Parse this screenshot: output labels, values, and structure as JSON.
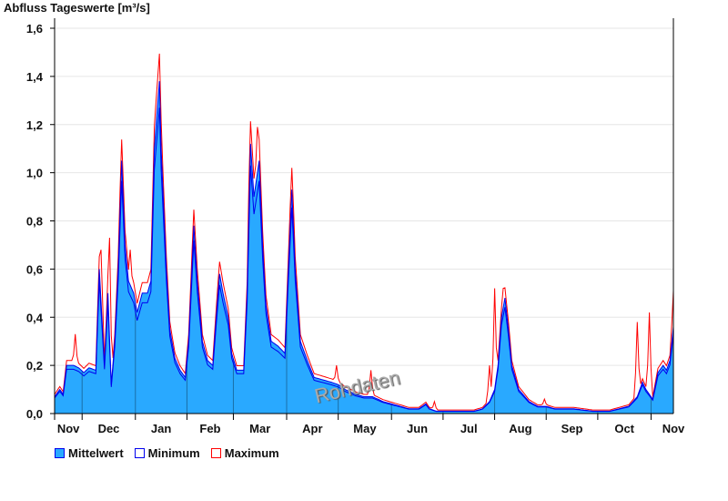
{
  "chart_data": {
    "type": "area",
    "title": "Abfluss Tageswerte [m³/s]",
    "xlabel": "",
    "ylabel": "Abfluss Tageswerte [m³/s]",
    "xlim": [
      0,
      360
    ],
    "ylim": [
      0,
      1.6
    ],
    "yticks": [
      0,
      0.2,
      0.4,
      0.6,
      0.8,
      1.0,
      1.2,
      1.4,
      1.6
    ],
    "ytick_labels": [
      "0,0",
      "0,2",
      "0,4",
      "0,6",
      "0,8",
      "1,0",
      "1,2",
      "1,4",
      "1,6"
    ],
    "month_boundaries_day": [
      0,
      16,
      47,
      77,
      104,
      135,
      165,
      196,
      226,
      256,
      286,
      316,
      347
    ],
    "month_labels": [
      "Nov",
      "Dec",
      "Jan",
      "Feb",
      "Mar",
      "Apr",
      "May",
      "Jun",
      "Jul",
      "Aug",
      "Sep",
      "Oct",
      "Nov"
    ],
    "grid": true,
    "watermark": "Rohdaten",
    "legend_position": "bottom-left",
    "series": [
      {
        "name": "Mittelwert",
        "color": "#29a9ff",
        "line": "#0000ee",
        "points": [
          [
            0,
            0.07
          ],
          [
            3,
            0.1
          ],
          [
            5,
            0.08
          ],
          [
            7,
            0.2
          ],
          [
            11,
            0.2
          ],
          [
            14,
            0.19
          ],
          [
            17,
            0.17
          ],
          [
            20,
            0.19
          ],
          [
            24,
            0.18
          ],
          [
            26,
            0.6
          ],
          [
            29,
            0.2
          ],
          [
            31,
            0.5
          ],
          [
            33,
            0.12
          ],
          [
            35,
            0.3
          ],
          [
            37,
            0.6
          ],
          [
            39,
            1.05
          ],
          [
            41,
            0.7
          ],
          [
            43,
            0.55
          ],
          [
            46,
            0.5
          ],
          [
            48,
            0.42
          ],
          [
            51,
            0.5
          ],
          [
            54,
            0.5
          ],
          [
            56,
            0.55
          ],
          [
            58,
            1.1
          ],
          [
            61,
            1.38
          ],
          [
            62,
            1.1
          ],
          [
            65,
            0.6
          ],
          [
            67,
            0.35
          ],
          [
            70,
            0.23
          ],
          [
            73,
            0.18
          ],
          [
            76,
            0.15
          ],
          [
            78,
            0.3
          ],
          [
            81,
            0.78
          ],
          [
            83,
            0.55
          ],
          [
            86,
            0.3
          ],
          [
            89,
            0.22
          ],
          [
            92,
            0.2
          ],
          [
            94,
            0.4
          ],
          [
            96,
            0.58
          ],
          [
            98,
            0.5
          ],
          [
            101,
            0.4
          ],
          [
            103,
            0.25
          ],
          [
            106,
            0.18
          ],
          [
            110,
            0.18
          ],
          [
            112,
            0.5
          ],
          [
            114,
            1.12
          ],
          [
            116,
            0.9
          ],
          [
            119,
            1.05
          ],
          [
            121,
            0.7
          ],
          [
            123,
            0.45
          ],
          [
            126,
            0.3
          ],
          [
            130,
            0.28
          ],
          [
            134,
            0.25
          ],
          [
            136,
            0.6
          ],
          [
            138,
            0.93
          ],
          [
            140,
            0.6
          ],
          [
            143,
            0.3
          ],
          [
            147,
            0.22
          ],
          [
            151,
            0.15
          ],
          [
            156,
            0.14
          ],
          [
            161,
            0.13
          ],
          [
            165,
            0.12
          ],
          [
            169,
            0.1
          ],
          [
            175,
            0.08
          ],
          [
            180,
            0.07
          ],
          [
            185,
            0.07
          ],
          [
            191,
            0.05
          ],
          [
            196,
            0.04
          ],
          [
            201,
            0.03
          ],
          [
            206,
            0.02
          ],
          [
            212,
            0.02
          ],
          [
            216,
            0.04
          ],
          [
            218,
            0.02
          ],
          [
            222,
            0.01
          ],
          [
            233,
            0.01
          ],
          [
            244,
            0.01
          ],
          [
            249,
            0.02
          ],
          [
            253,
            0.05
          ],
          [
            256,
            0.1
          ],
          [
            258,
            0.2
          ],
          [
            260,
            0.4
          ],
          [
            262,
            0.48
          ],
          [
            264,
            0.35
          ],
          [
            266,
            0.2
          ],
          [
            270,
            0.1
          ],
          [
            276,
            0.05
          ],
          [
            281,
            0.03
          ],
          [
            286,
            0.03
          ],
          [
            291,
            0.02
          ],
          [
            302,
            0.02
          ],
          [
            313,
            0.01
          ],
          [
            323,
            0.01
          ],
          [
            334,
            0.03
          ],
          [
            339,
            0.07
          ],
          [
            342,
            0.13
          ],
          [
            344,
            0.1
          ],
          [
            348,
            0.06
          ],
          [
            351,
            0.17
          ],
          [
            354,
            0.2
          ],
          [
            356,
            0.18
          ],
          [
            358,
            0.22
          ],
          [
            360,
            0.36
          ]
        ]
      },
      {
        "name": "Minimum",
        "color": "#0000ee",
        "factor_of_mean": 0.92
      },
      {
        "name": "Maximum",
        "color": "#ff0000",
        "peaks": [
          [
            12,
            0.33
          ],
          [
            27,
            0.68
          ],
          [
            32,
            0.73
          ],
          [
            39,
            1.08
          ],
          [
            44,
            0.68
          ],
          [
            60,
            1.3
          ],
          [
            61,
            1.45
          ],
          [
            81,
            0.8
          ],
          [
            96,
            0.59
          ],
          [
            114,
            1.19
          ],
          [
            118,
            1.19
          ],
          [
            138,
            1.02
          ],
          [
            164,
            0.2
          ],
          [
            184,
            0.18
          ],
          [
            221,
            0.05
          ],
          [
            253,
            0.2
          ],
          [
            256,
            0.52
          ],
          [
            261,
            0.52
          ],
          [
            285,
            0.06
          ],
          [
            339,
            0.38
          ],
          [
            346,
            0.42
          ],
          [
            360,
            0.51
          ]
        ]
      }
    ]
  },
  "legend": {
    "mean": "Mittelwert",
    "min": "Minimum",
    "max": "Maximum"
  }
}
